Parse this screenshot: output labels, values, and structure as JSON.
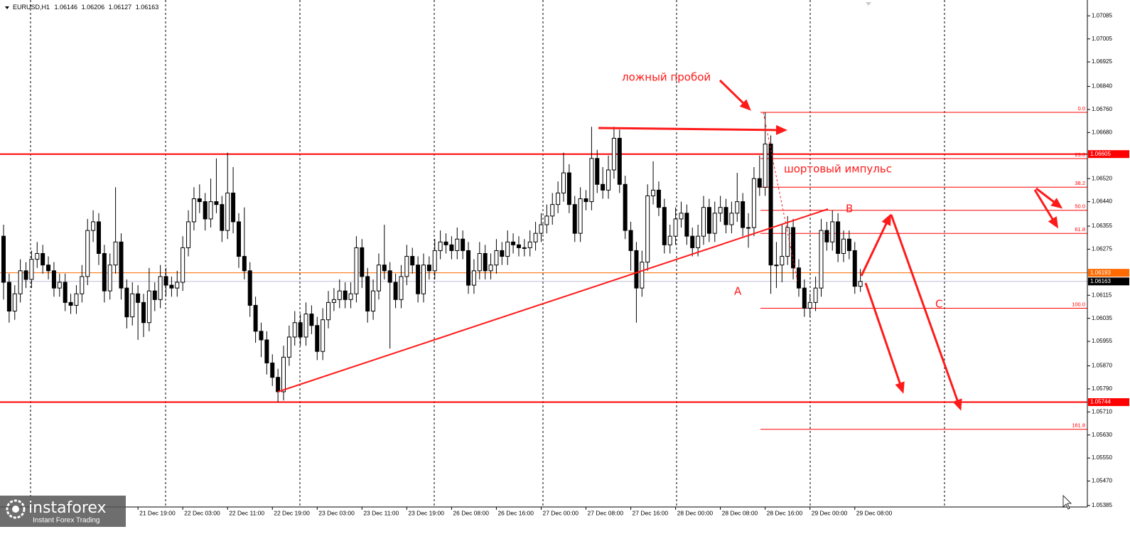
{
  "chart_data": {
    "type": "candlestick",
    "title": "EURUSD,H1",
    "ylim": [
      1.0538,
      1.0714
    ],
    "yticks": [
      1.07085,
      1.07005,
      1.06925,
      {
        "value": 1.0684,
        "label": "1.06840"
      },
      {
        "value": 1.0676,
        "label": "1.06760"
      },
      {
        "value": 1.0668,
        "label": "1.06680"
      },
      {
        "value": 1.0652,
        "label": "1.06520"
      },
      {
        "value": 1.0644,
        "label": "1.06440"
      },
      1.06355,
      1.06275,
      1.06115,
      1.06035,
      1.05955,
      {
        "value": 1.0587,
        "label": "1.05870"
      },
      {
        "value": 1.0579,
        "label": "1.05790"
      },
      {
        "value": 1.0571,
        "label": "1.05710"
      },
      {
        "value": 1.0563,
        "label": "1.05630"
      },
      {
        "value": 1.0555,
        "label": "1.05550"
      },
      {
        "value": 1.0547,
        "label": "1.05470"
      },
      1.05385
    ],
    "categories": [
      null,
      null,
      null,
      null,
      null,
      null,
      null,
      null,
      null,
      null,
      null,
      null,
      null,
      null,
      null,
      null,
      null,
      null,
      null,
      null,
      null,
      null,
      null,
      null,
      "21 Dec 19:00",
      null,
      null,
      null,
      null,
      null,
      null,
      null,
      "22 Dec 03:00",
      null,
      null,
      null,
      null,
      null,
      null,
      null,
      "22 Dec 11:00",
      null,
      null,
      null,
      null,
      null,
      null,
      null,
      "22 Dec 19:00",
      null,
      null,
      null,
      null,
      null,
      null,
      null,
      "23 Dec 03:00",
      null,
      null,
      null,
      null,
      null,
      null,
      null,
      "23 Dec 11:00",
      null,
      null,
      null,
      null,
      null,
      null,
      null,
      "23 Dec 19:00",
      null,
      null,
      null,
      null,
      null,
      null,
      null,
      "26 Dec 08:00",
      null,
      null,
      null,
      null,
      null,
      null,
      null,
      "26 Dec 16:00",
      null,
      null,
      null,
      null,
      null,
      null,
      null,
      "27 Dec 00:00",
      null,
      null,
      null,
      null,
      null,
      null,
      null,
      "27 Dec 08:00",
      null,
      null,
      null,
      null,
      null,
      null,
      null,
      "27 Dec 16:00",
      null,
      null,
      null,
      null,
      null,
      null,
      null,
      "28 Dec 00:00",
      null,
      null,
      null,
      null,
      null,
      null,
      null,
      "28 Dec 08:00",
      null,
      null,
      null,
      null,
      null,
      null,
      null,
      "28 Dec 16:00",
      null,
      null,
      null,
      null,
      null,
      null,
      null,
      "29 Dec 00:00",
      null,
      null,
      null,
      null,
      null,
      null,
      null,
      "29 Dec 08:00",
      null
    ],
    "ohlc": [
      [
        1.0632,
        1.0636,
        1.061,
        1.0616
      ],
      [
        1.0616,
        1.0619,
        1.0602,
        1.0606
      ],
      [
        1.0606,
        1.0615,
        1.0603,
        1.0612
      ],
      [
        1.0612,
        1.0624,
        1.0609,
        1.062
      ],
      [
        1.062,
        1.0623,
        1.0614,
        1.0617
      ],
      [
        1.0617,
        1.0627,
        1.0614,
        1.0624
      ],
      [
        1.0624,
        1.063,
        1.0621,
        1.0626
      ],
      [
        1.0626,
        1.0629,
        1.0619,
        1.0622
      ],
      [
        1.0622,
        1.0625,
        1.0617,
        1.062
      ],
      [
        1.062,
        1.0623,
        1.0611,
        1.0614
      ],
      [
        1.0614,
        1.0619,
        1.0611,
        1.0616
      ],
      [
        1.0616,
        1.0619,
        1.0606,
        1.0609
      ],
      [
        1.0609,
        1.0612,
        1.0605,
        1.0608
      ],
      [
        1.0608,
        1.0615,
        1.0605,
        1.0612
      ],
      [
        1.0612,
        1.0622,
        1.0609,
        1.0618
      ],
      [
        1.0618,
        1.0638,
        1.0615,
        1.0634
      ],
      [
        1.0634,
        1.0641,
        1.063,
        1.0637
      ],
      [
        1.0637,
        1.064,
        1.0622,
        1.0626
      ],
      [
        1.0626,
        1.0629,
        1.0609,
        1.0613
      ],
      [
        1.0613,
        1.0626,
        1.061,
        1.0622
      ],
      [
        1.0622,
        1.0649,
        1.0619,
        1.063
      ],
      [
        1.063,
        1.0633,
        1.061,
        1.0614
      ],
      [
        1.0614,
        1.0617,
        1.06,
        1.0604
      ],
      [
        1.0604,
        1.0616,
        1.0601,
        1.0612
      ],
      [
        1.0612,
        1.0615,
        1.0596,
        1.0609
      ],
      [
        1.0609,
        1.0612,
        1.0597,
        1.0602
      ],
      [
        1.0602,
        1.0621,
        1.0599,
        1.0613
      ],
      [
        1.0613,
        1.0616,
        1.0606,
        1.061
      ],
      [
        1.061,
        1.0622,
        1.0607,
        1.0618
      ],
      [
        1.0618,
        1.0621,
        1.0611,
        1.0615
      ],
      [
        1.0615,
        1.0618,
        1.0611,
        1.0614
      ],
      [
        1.0614,
        1.062,
        1.0611,
        1.0616
      ],
      [
        1.0616,
        1.0632,
        1.0613,
        1.0628
      ],
      [
        1.0628,
        1.0641,
        1.0625,
        1.0637
      ],
      [
        1.0637,
        1.0649,
        1.0634,
        1.0645
      ],
      [
        1.0645,
        1.065,
        1.064,
        1.0644
      ],
      [
        1.0644,
        1.0647,
        1.0634,
        1.0638
      ],
      [
        1.0638,
        1.0652,
        1.0635,
        1.0644
      ],
      [
        1.0644,
        1.0659,
        1.064,
        1.0643
      ],
      [
        1.0643,
        1.0646,
        1.063,
        1.0634
      ],
      [
        1.0634,
        1.0661,
        1.0631,
        1.0647
      ],
      [
        1.0647,
        1.0656,
        1.0633,
        1.0637
      ],
      [
        1.0637,
        1.064,
        1.0621,
        1.0625
      ],
      [
        1.0625,
        1.0642,
        1.0617,
        1.062
      ],
      [
        1.062,
        1.0623,
        1.0604,
        1.0608
      ],
      [
        1.0608,
        1.0611,
        1.0595,
        1.0599
      ],
      [
        1.0599,
        1.0602,
        1.059,
        1.0596
      ],
      [
        1.0596,
        1.0599,
        1.0584,
        1.0588
      ],
      [
        1.0588,
        1.0591,
        1.058,
        1.0583
      ],
      [
        1.0583,
        1.0586,
        1.05744,
        1.0578
      ],
      [
        1.0578,
        1.0594,
        1.0575,
        1.059
      ],
      [
        1.059,
        1.0601,
        1.0587,
        1.0597
      ],
      [
        1.0597,
        1.0606,
        1.0594,
        1.0602
      ],
      [
        1.0602,
        1.0605,
        1.0594,
        1.0597
      ],
      [
        1.0597,
        1.0609,
        1.0594,
        1.0605
      ],
      [
        1.0605,
        1.0608,
        1.0598,
        1.0601
      ],
      [
        1.0601,
        1.0604,
        1.0589,
        1.0592
      ],
      [
        1.0592,
        1.0607,
        1.0589,
        1.0603
      ],
      [
        1.0603,
        1.0613,
        1.06,
        1.0609
      ],
      [
        1.0609,
        1.0614,
        1.0606,
        1.061
      ],
      [
        1.061,
        1.0617,
        1.0607,
        1.0613
      ],
      [
        1.0613,
        1.0616,
        1.0607,
        1.061
      ],
      [
        1.061,
        1.0616,
        1.0607,
        1.0612
      ],
      [
        1.0612,
        1.0632,
        1.0609,
        1.0628
      ],
      [
        1.0628,
        1.0631,
        1.0614,
        1.0618
      ],
      [
        1.0618,
        1.0621,
        1.0602,
        1.0606
      ],
      [
        1.0606,
        1.0617,
        1.0603,
        1.0613
      ],
      [
        1.0613,
        1.0626,
        1.061,
        1.0622
      ],
      [
        1.0622,
        1.0636,
        1.0617,
        1.062
      ],
      [
        1.062,
        1.0623,
        1.0593,
        1.0616
      ],
      [
        1.0616,
        1.0619,
        1.0607,
        1.061
      ],
      [
        1.061,
        1.0622,
        1.0607,
        1.0618
      ],
      [
        1.0618,
        1.0629,
        1.0615,
        1.0625
      ],
      [
        1.0625,
        1.0628,
        1.0619,
        1.0622
      ],
      [
        1.0622,
        1.0625,
        1.0609,
        1.0612
      ],
      [
        1.0612,
        1.0626,
        1.0609,
        1.0622
      ],
      [
        1.0622,
        1.0625,
        1.0617,
        1.062
      ],
      [
        1.062,
        1.0631,
        1.0617,
        1.0627
      ],
      [
        1.0627,
        1.0634,
        1.0624,
        1.063
      ],
      [
        1.063,
        1.0633,
        1.0626,
        1.0629
      ],
      [
        1.0629,
        1.0632,
        1.0624,
        1.0627
      ],
      [
        1.0627,
        1.0635,
        1.0624,
        1.0631
      ],
      [
        1.0631,
        1.0634,
        1.0624,
        1.0627
      ],
      [
        1.0627,
        1.063,
        1.0612,
        1.0615
      ],
      [
        1.0615,
        1.0624,
        1.0612,
        1.062
      ],
      [
        1.062,
        1.063,
        1.0617,
        1.0626
      ],
      [
        1.0626,
        1.0629,
        1.0617,
        1.062
      ],
      [
        1.062,
        1.0626,
        1.0617,
        1.0622
      ],
      [
        1.0622,
        1.0631,
        1.0619,
        1.0627
      ],
      [
        1.0627,
        1.063,
        1.0622,
        1.0625
      ],
      [
        1.0625,
        1.0634,
        1.0622,
        1.063
      ],
      [
        1.063,
        1.0633,
        1.0626,
        1.0629
      ],
      [
        1.0629,
        1.0632,
        1.0625,
        1.0628
      ],
      [
        1.0628,
        1.0631,
        1.0625,
        1.0628
      ],
      [
        1.0628,
        1.0634,
        1.0625,
        1.063
      ],
      [
        1.063,
        1.0637,
        1.0627,
        1.0633
      ],
      [
        1.0633,
        1.064,
        1.063,
        1.0636
      ],
      [
        1.0636,
        1.0643,
        1.0633,
        1.0639
      ],
      [
        1.0639,
        1.0647,
        1.0636,
        1.0643
      ],
      [
        1.0643,
        1.0651,
        1.064,
        1.0647
      ],
      [
        1.0647,
        1.0661,
        1.0644,
        1.0654
      ],
      [
        1.0654,
        1.0657,
        1.064,
        1.0643
      ],
      [
        1.0643,
        1.0646,
        1.063,
        1.0633
      ],
      [
        1.0633,
        1.0649,
        1.063,
        1.0645
      ],
      [
        1.0645,
        1.0648,
        1.0641,
        1.0644
      ],
      [
        1.0644,
        1.067,
        1.0641,
        1.0659
      ],
      [
        1.0659,
        1.0662,
        1.0647,
        1.065
      ],
      [
        1.065,
        1.0656,
        1.0645,
        1.0648
      ],
      [
        1.0648,
        1.066,
        1.0645,
        1.0655
      ],
      [
        1.0655,
        1.067,
        1.0652,
        1.0666
      ],
      [
        1.0666,
        1.0669,
        1.0647,
        1.065
      ],
      [
        1.065,
        1.0653,
        1.0631,
        1.0634
      ],
      [
        1.0634,
        1.0637,
        1.062,
        1.0627
      ],
      [
        1.0627,
        1.063,
        1.0602,
        1.0614
      ],
      [
        1.0614,
        1.0627,
        1.0611,
        1.0623
      ],
      [
        1.0623,
        1.065,
        1.062,
        1.0646
      ],
      [
        1.0646,
        1.0658,
        1.0643,
        1.0648
      ],
      [
        1.0648,
        1.0651,
        1.0639,
        1.0642
      ],
      [
        1.0642,
        1.0645,
        1.0626,
        1.0629
      ],
      [
        1.0629,
        1.0636,
        1.0626,
        1.0632
      ],
      [
        1.0632,
        1.0642,
        1.0629,
        1.0638
      ],
      [
        1.0638,
        1.0644,
        1.0635,
        1.064
      ],
      [
        1.064,
        1.0643,
        1.0629,
        1.0632
      ],
      [
        1.0632,
        1.0635,
        1.0625,
        1.0628
      ],
      [
        1.0628,
        1.0636,
        1.0625,
        1.0632
      ],
      [
        1.0632,
        1.0646,
        1.0629,
        1.0642
      ],
      [
        1.0642,
        1.0645,
        1.063,
        1.0633
      ],
      [
        1.0633,
        1.0644,
        1.063,
        1.064
      ],
      [
        1.064,
        1.0646,
        1.0637,
        1.0642
      ],
      [
        1.0642,
        1.0645,
        1.0633,
        1.0636
      ],
      [
        1.0636,
        1.0644,
        1.0633,
        1.064
      ],
      [
        1.064,
        1.0654,
        1.0637,
        1.0644
      ],
      [
        1.0644,
        1.0647,
        1.0632,
        1.0635
      ],
      [
        1.0635,
        1.064,
        1.0628,
        1.0635
      ],
      [
        1.0635,
        1.0656,
        1.0632,
        1.0652
      ],
      [
        1.0652,
        1.066,
        1.0646,
        1.0649
      ],
      [
        1.0649,
        1.0675,
        1.0646,
        1.0664
      ],
      [
        1.0664,
        1.0667,
        1.0612,
        1.0622
      ],
      [
        1.0622,
        1.063,
        1.0614,
        1.0622
      ],
      [
        1.0622,
        1.0636,
        1.0616,
        1.0625
      ],
      [
        1.0625,
        1.0639,
        1.0622,
        1.0635
      ],
      [
        1.0635,
        1.0638,
        1.0617,
        1.0621
      ],
      [
        1.0621,
        1.0624,
        1.0611,
        1.0614
      ],
      [
        1.0614,
        1.0617,
        1.0604,
        1.0607
      ],
      [
        1.0607,
        1.0612,
        1.0604,
        1.0609
      ],
      [
        1.0609,
        1.0618,
        1.0606,
        1.0614
      ],
      [
        1.0614,
        1.0638,
        1.0611,
        1.0634
      ],
      [
        1.0634,
        1.0637,
        1.0627,
        1.063
      ],
      [
        1.063,
        1.0641,
        1.0627,
        1.0637
      ],
      [
        1.0637,
        1.064,
        1.0623,
        1.0626
      ],
      [
        1.0626,
        1.0634,
        1.0623,
        1.0631
      ],
      [
        1.0631,
        1.0634,
        1.0624,
        1.0627
      ],
      [
        1.0627,
        1.063,
        1.0612,
        1.06146
      ],
      [
        1.06146,
        1.06206,
        1.06127,
        1.06163
      ]
    ],
    "price_lines": [
      {
        "value": 1.06605,
        "color": "#ff0000"
      },
      {
        "value": 1.05744,
        "color": "#ff0000"
      },
      {
        "value": 1.06193,
        "color": "#ff6a00"
      }
    ],
    "current_price_color": "#c0c0d8",
    "fibo": {
      "high": 1.0675,
      "low": 1.0607,
      "color": "#ff0000",
      "levels": [
        {
          "value": 0,
          "label": "0.0"
        },
        23.6,
        38.2,
        {
          "value": 50,
          "label": "50.0"
        },
        61.8,
        {
          "value": 100,
          "label": "100.0"
        },
        161.8
      ]
    },
    "annotations": [
      "ложный пробой",
      "шортовый импульс",
      "A",
      "B",
      "C"
    ]
  },
  "watermark": {
    "brand": "instaforex",
    "tagline": "Instant Forex Trading"
  }
}
